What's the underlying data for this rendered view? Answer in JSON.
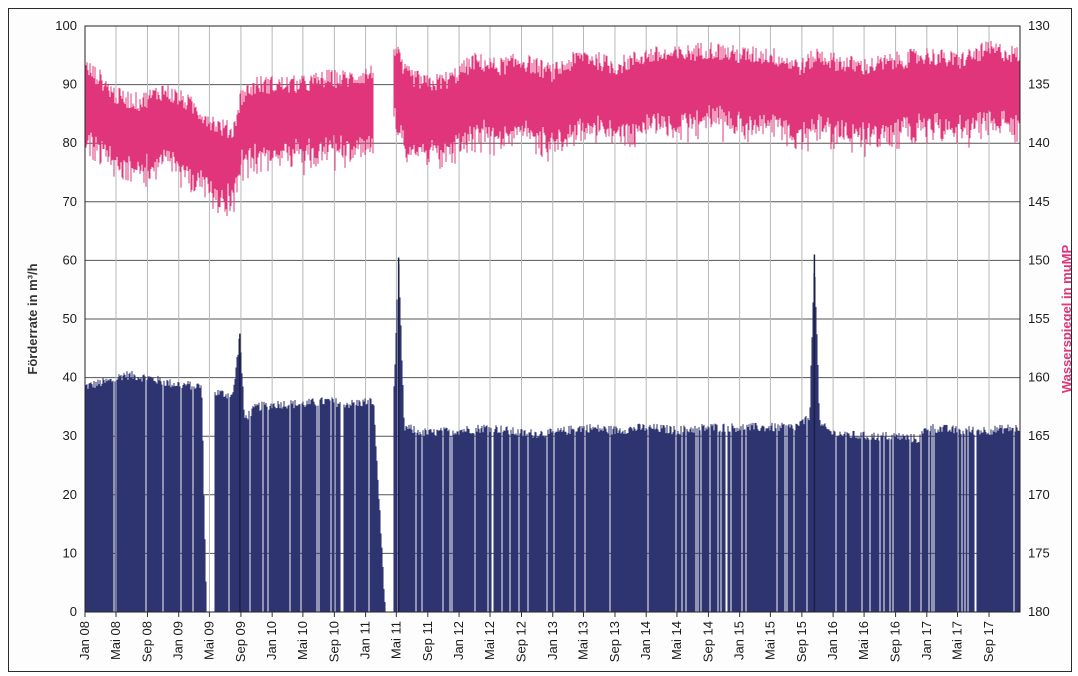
{
  "chart_data": {
    "type": "bar",
    "x_tick_labels": [
      "Jan 08",
      "Mai 08",
      "Sep 08",
      "Jan 09",
      "Mai 09",
      "Sep 09",
      "Jan 10",
      "Mai 10",
      "Sep 10",
      "Jan 11",
      "Mai 11",
      "Sep 11",
      "Jan 12",
      "Mai 12",
      "Sep 12",
      "Jan 13",
      "Mai 13",
      "Sep 13",
      "Jan 14",
      "Mai 14",
      "Sep 14",
      "Jan 15",
      "Mai 15",
      "Sep 15",
      "Jan 16",
      "Mai 16",
      "Sep 16",
      "Jan 17",
      "Mai 17",
      "Sep 17"
    ],
    "x_range": [
      "2008-01-01",
      "2017-12-31"
    ],
    "ylabel": "Förderrate in m³/h",
    "ylim": [
      0,
      100
    ],
    "y_ticks": [
      0,
      10,
      20,
      30,
      40,
      50,
      60,
      70,
      80,
      90,
      100
    ],
    "y2label": "Wasserspiegel in muMP",
    "y2lim": [
      180,
      130
    ],
    "y2_ticks": [
      180,
      175,
      170,
      165,
      160,
      155,
      150,
      145,
      140,
      135,
      130
    ],
    "y2_inverted": true,
    "grid": true,
    "legend": "none",
    "series": [
      {
        "axis": "left",
        "kind": "bar",
        "color": "#2e3470",
        "points": [
          [
            "2008-01-01",
            38.5
          ],
          [
            "2008-04-15",
            39.5
          ],
          [
            "2008-06-01",
            40.5
          ],
          [
            "2008-09-01",
            40
          ],
          [
            "2008-12-01",
            39
          ],
          [
            "2009-04-01",
            38.5
          ],
          [
            "2009-04-20",
            0
          ],
          [
            "2009-05-20",
            37.5
          ],
          [
            "2009-08-01",
            37
          ],
          [
            "2009-08-28",
            47.5
          ],
          [
            "2009-09-15",
            33
          ],
          [
            "2009-11-01",
            35
          ],
          [
            "2010-02-01",
            35.5
          ],
          [
            "2010-05-01",
            35.5
          ],
          [
            "2010-08-01",
            36
          ],
          [
            "2010-11-01",
            35.5
          ],
          [
            "2011-02-01",
            36
          ],
          [
            "2011-03-20",
            0
          ],
          [
            "2011-04-20",
            35.5
          ],
          [
            "2011-05-10",
            60.5
          ],
          [
            "2011-06-01",
            31.5
          ],
          [
            "2011-09-01",
            30.5
          ],
          [
            "2012-01-01",
            31
          ],
          [
            "2012-05-01",
            31.5
          ],
          [
            "2012-09-01",
            30.5
          ],
          [
            "2013-01-01",
            30.5
          ],
          [
            "2013-05-01",
            31.5
          ],
          [
            "2013-09-01",
            31
          ],
          [
            "2014-01-01",
            31.5
          ],
          [
            "2014-05-01",
            31
          ],
          [
            "2014-09-01",
            31.5
          ],
          [
            "2015-01-01",
            31.5
          ],
          [
            "2015-05-01",
            31.5
          ],
          [
            "2015-08-01",
            31.5
          ],
          [
            "2015-10-01",
            33
          ],
          [
            "2015-10-20",
            61
          ],
          [
            "2015-11-10",
            32
          ],
          [
            "2016-01-01",
            30.5
          ],
          [
            "2016-05-01",
            30
          ],
          [
            "2016-09-01",
            30
          ],
          [
            "2016-12-01",
            29.5
          ],
          [
            "2017-01-01",
            31.5
          ],
          [
            "2017-05-01",
            31
          ],
          [
            "2017-09-01",
            31
          ],
          [
            "2017-12-31",
            31.5
          ]
        ],
        "gaps": [
          [
            "2009-04-20",
            "2009-05-20"
          ],
          [
            "2011-03-20",
            "2011-04-20"
          ]
        ]
      },
      {
        "axis": "right",
        "kind": "line",
        "color": "#e0357a",
        "points": [
          [
            "2008-01-01",
            136.5
          ],
          [
            "2008-03-01",
            137.5
          ],
          [
            "2008-05-01",
            139
          ],
          [
            "2008-08-01",
            139.5
          ],
          [
            "2008-11-01",
            138.5
          ],
          [
            "2009-02-01",
            139.5
          ],
          [
            "2009-04-01",
            140.5
          ],
          [
            "2009-06-01",
            141.5
          ],
          [
            "2009-08-01",
            142
          ],
          [
            "2009-09-01",
            139
          ],
          [
            "2009-11-01",
            138
          ],
          [
            "2010-02-01",
            138
          ],
          [
            "2010-05-01",
            138
          ],
          [
            "2010-08-01",
            137.5
          ],
          [
            "2010-11-01",
            137.5
          ],
          [
            "2011-02-01",
            137
          ],
          [
            "2011-03-20",
            null
          ],
          [
            "2011-04-20",
            134.5
          ],
          [
            "2011-06-01",
            137
          ],
          [
            "2011-09-01",
            138
          ],
          [
            "2011-12-01",
            137.5
          ],
          [
            "2012-03-01",
            136
          ],
          [
            "2012-06-01",
            136.5
          ],
          [
            "2012-09-01",
            136
          ],
          [
            "2013-01-01",
            137
          ],
          [
            "2013-05-01",
            135.5
          ],
          [
            "2013-09-01",
            136.5
          ],
          [
            "2014-01-01",
            135.5
          ],
          [
            "2014-05-01",
            135.5
          ],
          [
            "2014-09-01",
            135
          ],
          [
            "2015-01-01",
            135.5
          ],
          [
            "2015-05-01",
            135.5
          ],
          [
            "2015-09-01",
            136.5
          ],
          [
            "2015-11-01",
            135.5
          ],
          [
            "2016-01-01",
            136
          ],
          [
            "2016-05-01",
            136.5
          ],
          [
            "2016-09-01",
            136
          ],
          [
            "2017-01-01",
            135.5
          ],
          [
            "2017-05-01",
            136
          ],
          [
            "2017-09-01",
            135
          ],
          [
            "2017-12-31",
            135.5
          ]
        ]
      }
    ]
  }
}
